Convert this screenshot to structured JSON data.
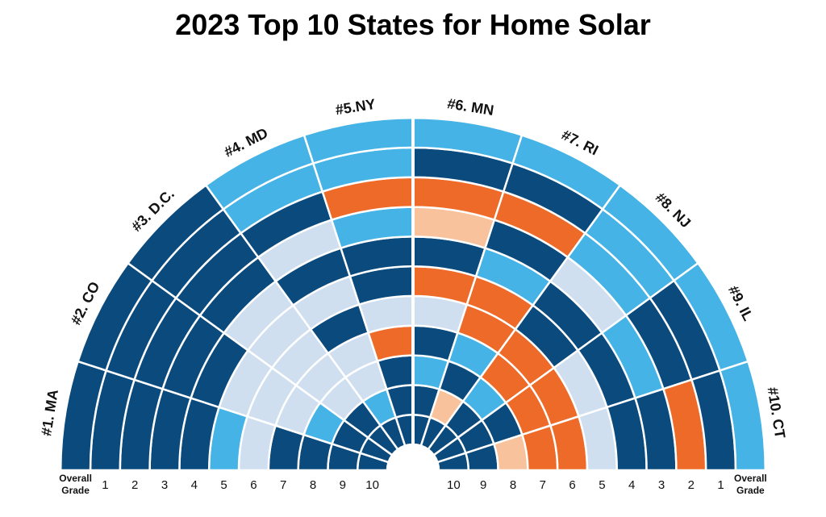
{
  "chart_data": {
    "type": "radial-heatmap",
    "title": "2023 Top 10 States for Home Solar",
    "states": [
      "#1. MA",
      "#2. CO",
      "#3. D.C.",
      "#4. MD",
      "#5.NY",
      "#6. MN",
      "#7. RI",
      "#8. NJ",
      "#9. IL",
      "#10. CT"
    ],
    "left_ring_labels": [
      "Overall Grade",
      "1",
      "2",
      "3",
      "4",
      "5",
      "6",
      "7",
      "8",
      "9",
      "10"
    ],
    "right_ring_labels": [
      "10",
      "9",
      "8",
      "7",
      "6",
      "5",
      "4",
      "3",
      "2",
      "1",
      "Overall Grade"
    ],
    "overall_grade_label": [
      "Overall",
      "Grade"
    ],
    "grade_colors": {
      "A": "#0b4a7d",
      "B": "#45b3e6",
      "C": "#cfdff0",
      "D": "#ee6a28",
      "F": "#f8c29c"
    },
    "grades": [
      [
        "A",
        "A",
        "A",
        "A",
        "A",
        "B",
        "C",
        "A",
        "A",
        "A",
        "A"
      ],
      [
        "A",
        "A",
        "A",
        "A",
        "A",
        "C",
        "C",
        "C",
        "B",
        "A",
        "A"
      ],
      [
        "A",
        "A",
        "A",
        "A",
        "C",
        "C",
        "C",
        "C",
        "C",
        "A",
        "A"
      ],
      [
        "B",
        "B",
        "A",
        "C",
        "A",
        "C",
        "A",
        "C",
        "C",
        "B",
        "A"
      ],
      [
        "B",
        "B",
        "D",
        "B",
        "A",
        "A",
        "C",
        "D",
        "A",
        "A",
        "A"
      ],
      [
        "B",
        "A",
        "D",
        "F",
        "A",
        "D",
        "C",
        "A",
        "B",
        "A",
        "A"
      ],
      [
        "B",
        "A",
        "D",
        "A",
        "B",
        "D",
        "D",
        "B",
        "A",
        "F",
        "A"
      ],
      [
        "B",
        "B",
        "B",
        "C",
        "A",
        "A",
        "D",
        "D",
        "B",
        "A",
        "A"
      ],
      [
        "B",
        "A",
        "A",
        "B",
        "A",
        "C",
        "D",
        "D",
        "A",
        "A",
        "A"
      ],
      [
        "B",
        "A",
        "D",
        "A",
        "A",
        "C",
        "D",
        "D",
        "F",
        "A",
        "A"
      ]
    ]
  }
}
